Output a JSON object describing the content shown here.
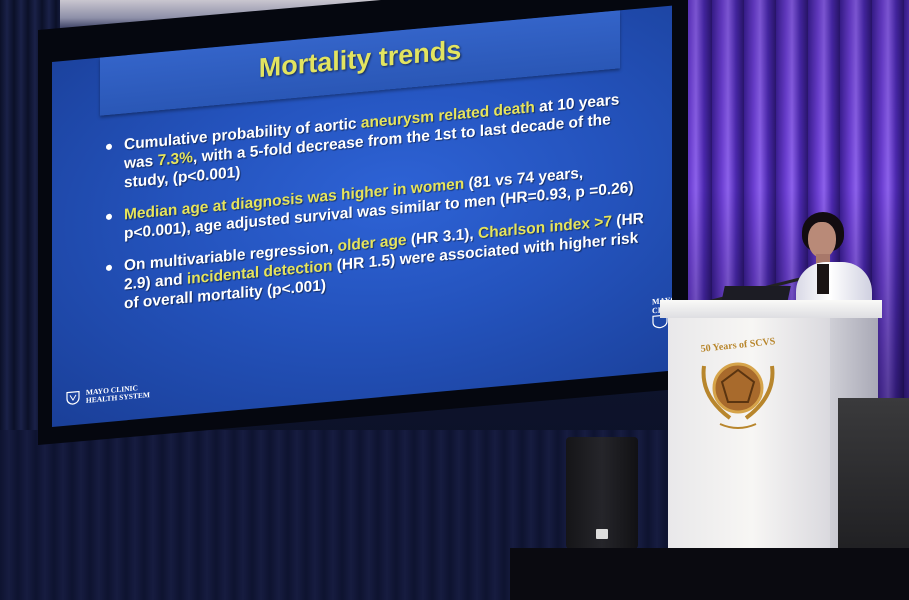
{
  "slide": {
    "title": "Mortality trends",
    "bullets": [
      {
        "segments": [
          {
            "text": "Cumulative probability of aortic ",
            "hl": false
          },
          {
            "text": "aneurysm related death",
            "hl": true
          },
          {
            "text": " at 10 years was ",
            "hl": false
          },
          {
            "text": "7.3%",
            "hl": true
          },
          {
            "text": ", with a 5-fold decrease from the 1st to last decade of the study, (p<0.001)",
            "hl": false
          }
        ]
      },
      {
        "segments": [
          {
            "text": "Median age at diagnosis was higher in women",
            "hl": true
          },
          {
            "text": " (81 vs 74 years, p<0.001), age adjusted survival was similar to men (HR=0.93, p =0.26)",
            "hl": false
          }
        ]
      },
      {
        "segments": [
          {
            "text": "On multivariable regression, ",
            "hl": false
          },
          {
            "text": "older age",
            "hl": true
          },
          {
            "text": " (HR 3.1), ",
            "hl": false
          },
          {
            "text": "Charlson index >7",
            "hl": true
          },
          {
            "text": " (HR 2.9) and ",
            "hl": false
          },
          {
            "text": "incidental detection",
            "hl": true
          },
          {
            "text": " (HR 1.5) were associated with higher risk of overall mortality (p<.001)",
            "hl": false
          }
        ]
      }
    ],
    "logo_left_line1": "MAYO CLINIC",
    "logo_left_line2": "HEALTH SYSTEM",
    "logo_right_line1": "MAYO",
    "logo_right_line2": "CLINI"
  },
  "podium": {
    "emblem_text": "50 Years of SCVS"
  },
  "colors": {
    "slide_bg": "#2453bd",
    "highlight": "#e6e45c",
    "curtain": "#6b42c8"
  }
}
